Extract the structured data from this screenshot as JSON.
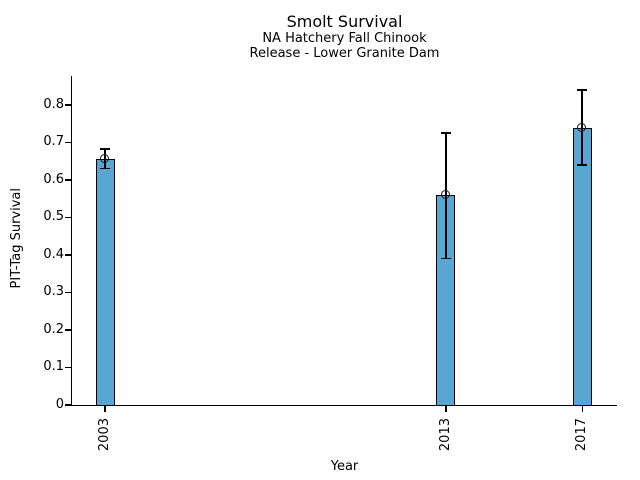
{
  "chart_data": {
    "type": "bar",
    "title": "Smolt Survival",
    "subtitle_lines": [
      "NA Hatchery Fall Chinook",
      "Release - Lower Granite Dam"
    ],
    "xlabel": "Year",
    "ylabel": "PIT-Tag Survival",
    "x": [
      2003,
      2013,
      2017
    ],
    "values": [
      0.655,
      0.56,
      0.739
    ],
    "error_low": [
      0.63,
      0.39,
      0.64
    ],
    "error_high": [
      0.683,
      0.725,
      0.84
    ],
    "yticks": [
      0,
      0.1,
      0.2,
      0.3,
      0.4,
      0.5,
      0.6,
      0.7,
      0.8
    ],
    "ytick_labels": [
      "0",
      "0.1",
      "0.2",
      "0.3",
      "0.4",
      "0.5",
      "0.6",
      "0.7",
      "0.8"
    ],
    "xtick_labels": [
      "2003",
      "2013",
      "2017"
    ],
    "xlim": [
      2002.03,
      2018.02
    ],
    "ylim": [
      0,
      0.877
    ],
    "bar_color": "#58A7D3",
    "bar_edge_color": "#000000",
    "error_color": "#000000",
    "marker": "open-circle",
    "grid": false,
    "legend": null
  }
}
